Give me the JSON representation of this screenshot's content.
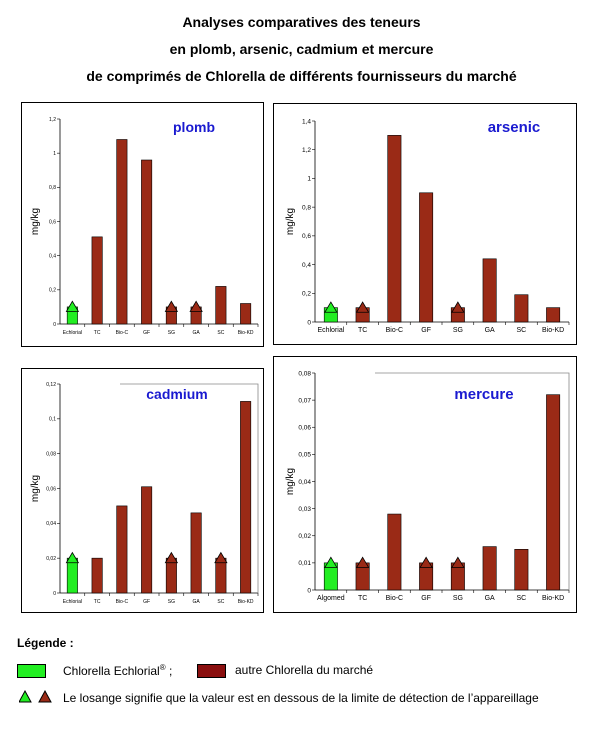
{
  "header": {
    "line1": "Analyses comparatives des teneurs",
    "line2": "en plomb, arsenic, cadmium et mercure",
    "line3": "de comprimés de Chlorella de différents fournisseurs du marché"
  },
  "colors": {
    "echlorial": "#22ee22",
    "other": "#9a2a16",
    "title_text": "#1a1ad0"
  },
  "chart_data": [
    {
      "type": "bar",
      "title": "plomb",
      "ylabel": "mg/kg",
      "ylim": [
        0,
        1.2
      ],
      "yticks": [
        "0",
        "0,2",
        "0,4",
        "0,6",
        "0,8",
        "1",
        "1,2"
      ],
      "categories": [
        "Echlorial",
        "TC",
        "Bio-C",
        "GF",
        "SG",
        "GA",
        "SC",
        "Bio-KD"
      ],
      "values": [
        0.1,
        0.51,
        1.08,
        0.96,
        0.1,
        0.1,
        0.22,
        0.12
      ],
      "below_detection_limit": [
        true,
        false,
        false,
        false,
        true,
        true,
        false,
        false
      ]
    },
    {
      "type": "bar",
      "title": "arsenic",
      "ylabel": "mg/kg",
      "ylim": [
        0,
        1.4
      ],
      "yticks": [
        "0",
        "0,2",
        "0,4",
        "0,6",
        "0,8",
        "1",
        "1,2",
        "1,4"
      ],
      "categories": [
        "Echlorial",
        "TC",
        "Bio-C",
        "GF",
        "SG",
        "GA",
        "SC",
        "Bio-KD"
      ],
      "values": [
        0.1,
        0.1,
        1.3,
        0.9,
        0.1,
        0.44,
        0.19,
        0.1
      ],
      "below_detection_limit": [
        true,
        true,
        false,
        false,
        true,
        false,
        false,
        false
      ]
    },
    {
      "type": "bar",
      "title": "cadmium",
      "ylabel": "mg/kg",
      "ylim": [
        0,
        0.12
      ],
      "yticks": [
        "0",
        "0,02",
        "0,04",
        "0,06",
        "0,08",
        "0,1",
        "0,12"
      ],
      "categories": [
        "Echlorial",
        "TC",
        "Bio-C",
        "GF",
        "SG",
        "GA",
        "SC",
        "Bio-KD"
      ],
      "values": [
        0.02,
        0.02,
        0.05,
        0.061,
        0.02,
        0.046,
        0.02,
        0.11
      ],
      "below_detection_limit": [
        true,
        false,
        false,
        false,
        true,
        false,
        true,
        false
      ]
    },
    {
      "type": "bar",
      "title": "mercure",
      "ylabel": "mg/kg",
      "ylim": [
        0,
        0.08
      ],
      "yticks": [
        "0",
        "0,01",
        "0,02",
        "0,03",
        "0,04",
        "0,05",
        "0,06",
        "0,07",
        "0,08"
      ],
      "categories": [
        "Algomed",
        "TC",
        "Bio-C",
        "GF",
        "SG",
        "GA",
        "SC",
        "Bio-KD"
      ],
      "values": [
        0.01,
        0.01,
        0.028,
        0.01,
        0.01,
        0.016,
        0.015,
        0.072
      ],
      "below_detection_limit": [
        true,
        true,
        false,
        true,
        true,
        false,
        false,
        false
      ]
    }
  ],
  "legend": {
    "title": "Légende :",
    "echlorial_label": "Chlorella Echlorial",
    "registered": "®",
    "separator": " ;",
    "other_label": "autre Chlorella du marché",
    "triangle_note": "Le losange signifie que la valeur est en dessous de la limite de détection de l’appareillage"
  }
}
